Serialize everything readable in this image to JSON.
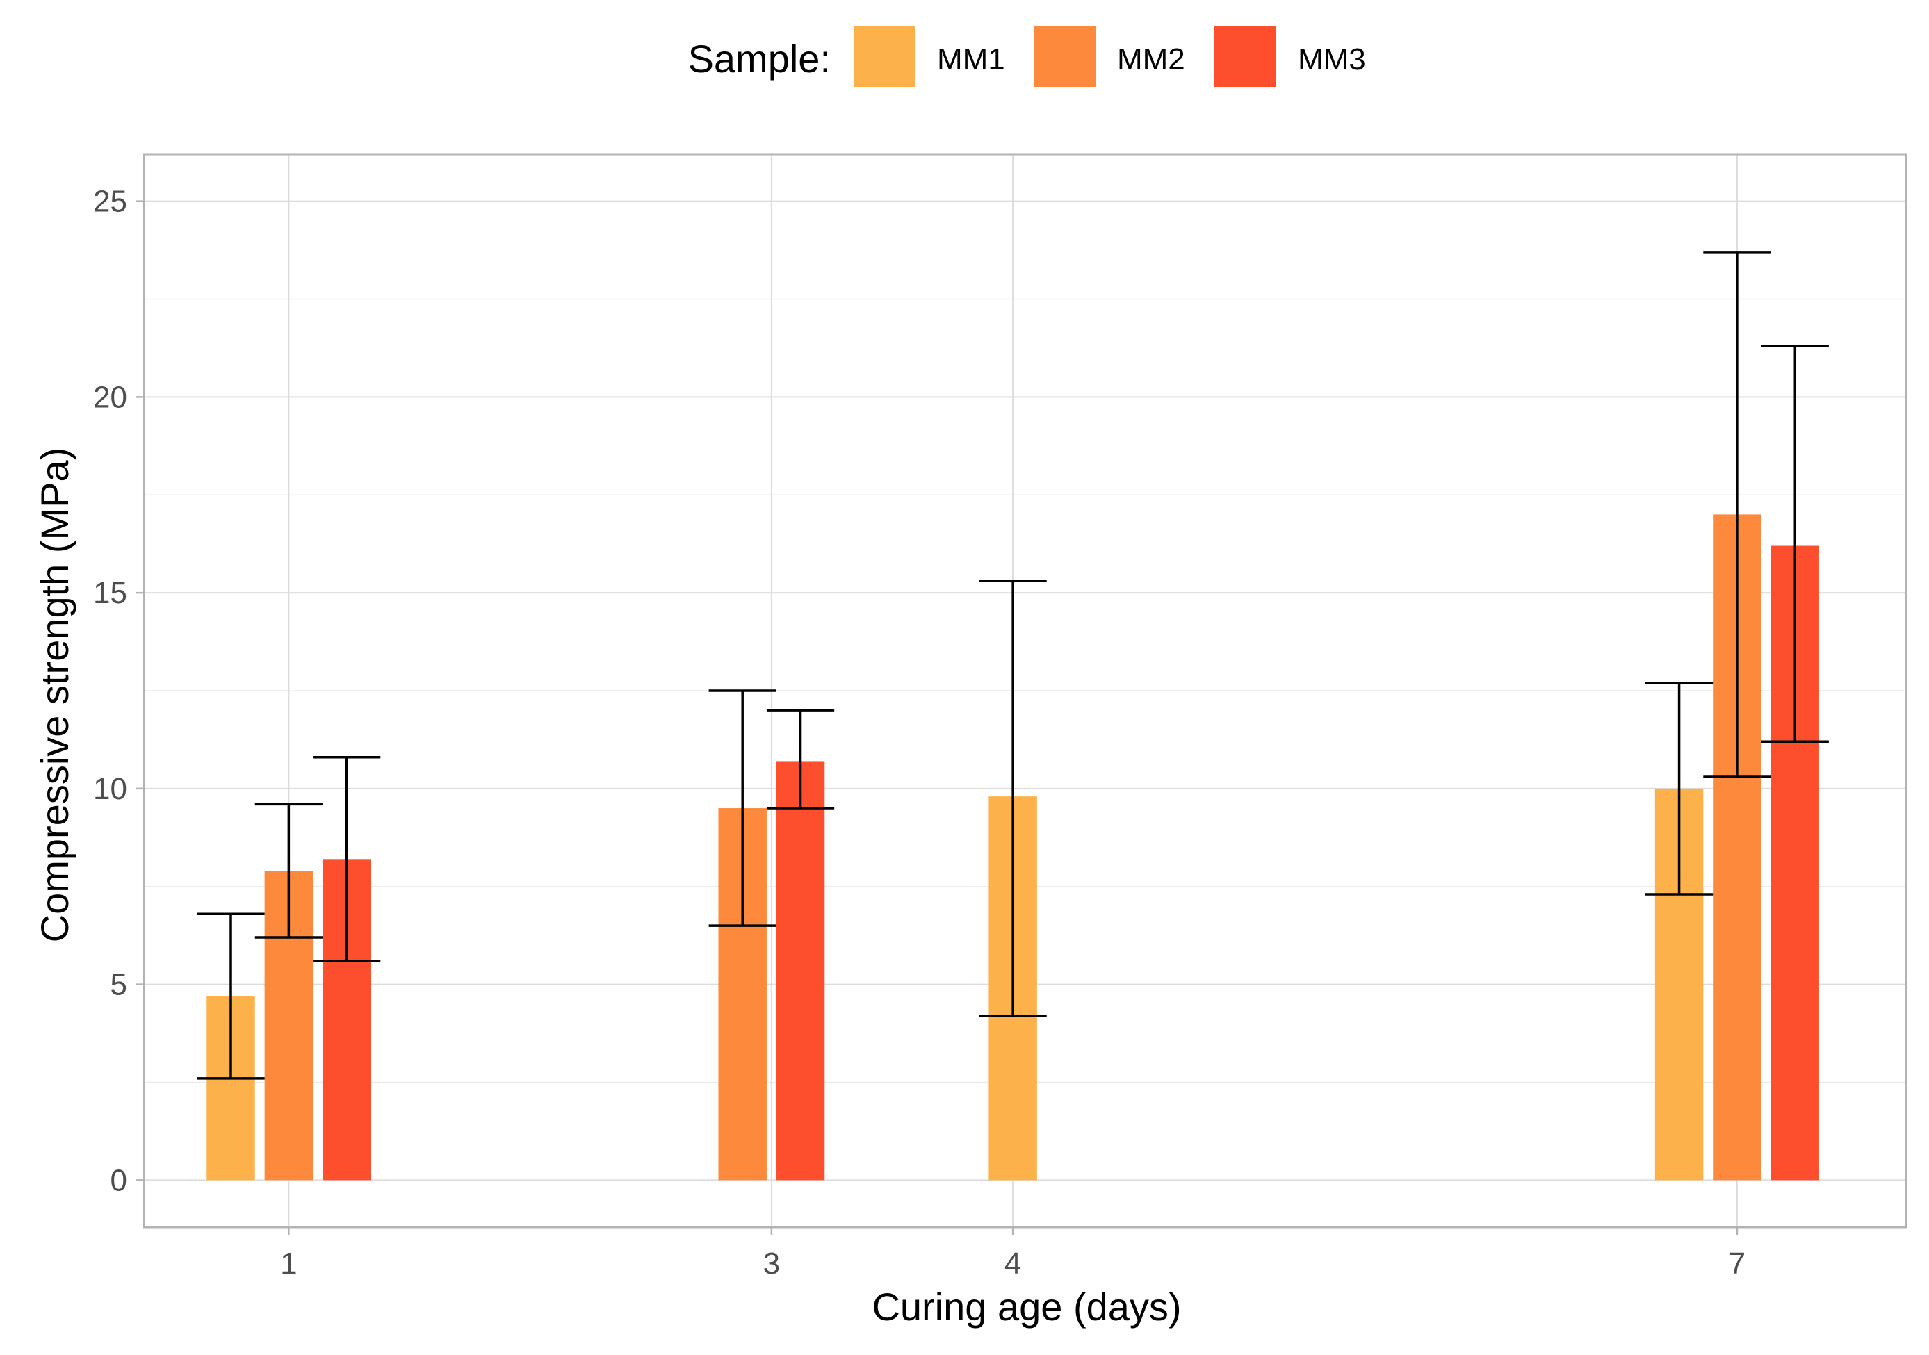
{
  "chart_data": {
    "type": "bar",
    "xlabel": "Curing age (days)",
    "ylabel": "Compressive strength (MPa)",
    "ylim": [
      -1.2,
      26.2
    ],
    "yticks": [
      0,
      5,
      10,
      15,
      20,
      25
    ],
    "xlim": [
      0.4,
      7.7
    ],
    "xticks": [
      1,
      3,
      4,
      7
    ],
    "legend": {
      "title": "Sample:",
      "position": "top",
      "entries": [
        {
          "name": "MM1",
          "color": "#FDB14A"
        },
        {
          "name": "MM2",
          "color": "#FD8A3C"
        },
        {
          "name": "MM3",
          "color": "#FD4F2D"
        }
      ]
    },
    "grid": true,
    "series": [
      {
        "name": "MM1",
        "color": "#FDB14A",
        "points": [
          {
            "x": 1,
            "value": 4.7,
            "err_low": 2.6,
            "err_high": 6.8
          },
          {
            "x": 4,
            "value": 9.8,
            "err_low": 4.2,
            "err_high": 15.3
          },
          {
            "x": 7,
            "value": 10.0,
            "err_low": 7.3,
            "err_high": 12.7
          }
        ]
      },
      {
        "name": "MM2",
        "color": "#FD8A3C",
        "points": [
          {
            "x": 1,
            "value": 7.9,
            "err_low": 6.2,
            "err_high": 9.6
          },
          {
            "x": 3,
            "value": 9.5,
            "err_low": 6.5,
            "err_high": 12.5
          },
          {
            "x": 7,
            "value": 17.0,
            "err_low": 10.3,
            "err_high": 23.7
          }
        ]
      },
      {
        "name": "MM3",
        "color": "#FD4F2D",
        "points": [
          {
            "x": 1,
            "value": 8.2,
            "err_low": 5.6,
            "err_high": 10.8
          },
          {
            "x": 3,
            "value": 10.7,
            "err_low": 9.5,
            "err_high": 12.0
          },
          {
            "x": 7,
            "value": 16.2,
            "err_low": 11.2,
            "err_high": 21.3
          }
        ]
      }
    ]
  }
}
